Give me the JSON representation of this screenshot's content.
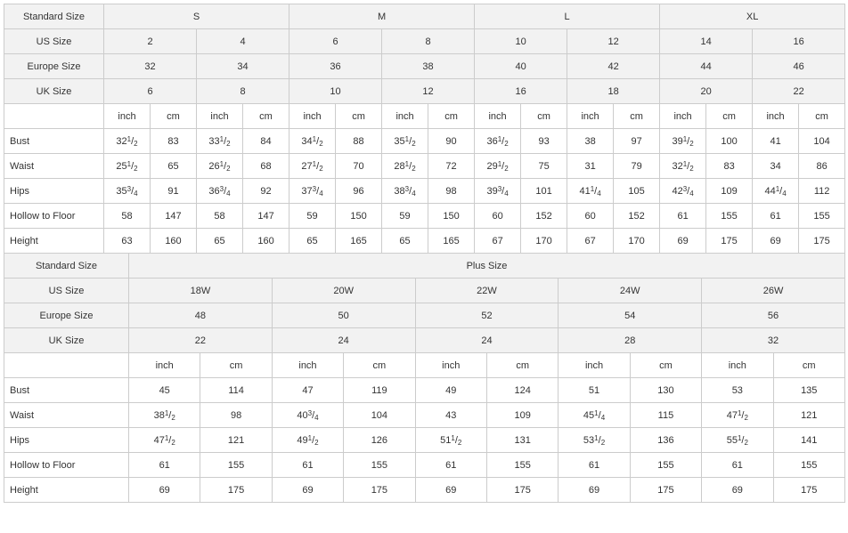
{
  "labels": {
    "standardSize": "Standard Size",
    "usSize": "US Size",
    "europeSize": "Europe Size",
    "ukSize": "UK Size",
    "plusSize": "Plus Size",
    "inch": "inch",
    "cm": "cm"
  },
  "std": {
    "letters": [
      "S",
      "M",
      "L",
      "XL"
    ],
    "us": [
      "2",
      "4",
      "6",
      "8",
      "10",
      "12",
      "14",
      "16"
    ],
    "europe": [
      "32",
      "34",
      "36",
      "38",
      "40",
      "42",
      "44",
      "46"
    ],
    "uk": [
      "6",
      "8",
      "10",
      "12",
      "16",
      "18",
      "20",
      "22"
    ],
    "rows": [
      {
        "label": "Bust",
        "in": [
          "32 1/2",
          "33 1/2",
          "34 1/2",
          "35 1/2",
          "36 1/2",
          "38",
          "39 1/2",
          "41"
        ],
        "cm": [
          "83",
          "84",
          "88",
          "90",
          "93",
          "97",
          "100",
          "104"
        ]
      },
      {
        "label": "Waist",
        "in": [
          "25 1/2",
          "26 1/2",
          "27 1/2",
          "28 1/2",
          "29 1/2",
          "31",
          "32 1/2",
          "34"
        ],
        "cm": [
          "65",
          "68",
          "70",
          "72",
          "75",
          "79",
          "83",
          "86"
        ]
      },
      {
        "label": "Hips",
        "in": [
          "35 3/4",
          "36 3/4",
          "37 3/4",
          "38 3/4",
          "39 3/4",
          "41 1/4",
          "42 3/4",
          "44 1/4"
        ],
        "cm": [
          "91",
          "92",
          "96",
          "98",
          "101",
          "105",
          "109",
          "112"
        ]
      },
      {
        "label": "Hollow to Floor",
        "in": [
          "58",
          "58",
          "59",
          "59",
          "60",
          "60",
          "61",
          "61"
        ],
        "cm": [
          "147",
          "147",
          "150",
          "150",
          "152",
          "152",
          "155",
          "155"
        ]
      },
      {
        "label": "Height",
        "in": [
          "63",
          "65",
          "65",
          "65",
          "67",
          "67",
          "69",
          "69"
        ],
        "cm": [
          "160",
          "160",
          "165",
          "165",
          "170",
          "170",
          "175",
          "175"
        ]
      }
    ]
  },
  "plus": {
    "us": [
      "18W",
      "20W",
      "22W",
      "24W",
      "26W"
    ],
    "europe": [
      "48",
      "50",
      "52",
      "54",
      "56"
    ],
    "uk": [
      "22",
      "24",
      "24",
      "28",
      "32"
    ],
    "rows": [
      {
        "label": "Bust",
        "in": [
          "45",
          "47",
          "49",
          "51",
          "53"
        ],
        "cm": [
          "114",
          "119",
          "124",
          "130",
          "135"
        ]
      },
      {
        "label": "Waist",
        "in": [
          "38 1/2",
          "40 3/4",
          "43",
          "45 1/4",
          "47 1/2"
        ],
        "cm": [
          "98",
          "104",
          "109",
          "115",
          "121"
        ]
      },
      {
        "label": "Hips",
        "in": [
          "47 1/2",
          "49 1/2",
          "51 1/2",
          "53 1/2",
          "55 1/2"
        ],
        "cm": [
          "121",
          "126",
          "131",
          "136",
          "141"
        ]
      },
      {
        "label": "Hollow to Floor",
        "in": [
          "61",
          "61",
          "61",
          "61",
          "61"
        ],
        "cm": [
          "155",
          "155",
          "155",
          "155",
          "155"
        ]
      },
      {
        "label": "Height",
        "in": [
          "69",
          "69",
          "69",
          "69",
          "69"
        ],
        "cm": [
          "175",
          "175",
          "175",
          "175",
          "175"
        ]
      }
    ]
  },
  "style": {
    "headerBg": "#f2f2f2",
    "borderColor": "#cccccc",
    "textColor": "#333333",
    "fontSize": 11
  }
}
